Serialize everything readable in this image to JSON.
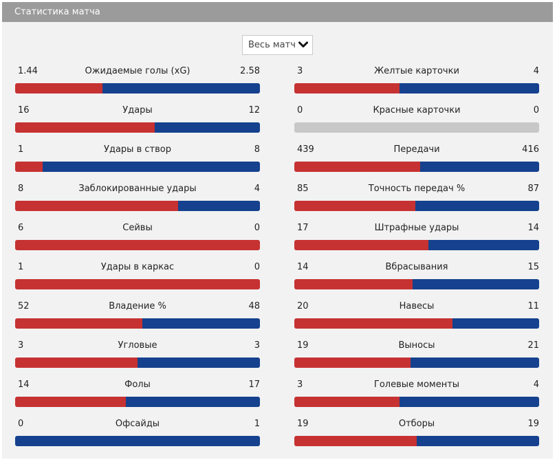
{
  "header": {
    "title": "Статистика матча"
  },
  "selector": {
    "value": "Весь матч"
  },
  "colors": {
    "home": "#c63232",
    "away": "#15418e",
    "empty": "#c8c8c8"
  },
  "left": [
    {
      "label": "Ожидаемые голы (xG)",
      "home": "1.44",
      "away": "2.58",
      "home_share": 0.358
    },
    {
      "label": "Удары",
      "home": "16",
      "away": "12",
      "home_share": 0.571
    },
    {
      "label": "Удары в створ",
      "home": "1",
      "away": "8",
      "home_share": 0.111
    },
    {
      "label": "Заблокированные удары",
      "home": "8",
      "away": "4",
      "home_share": 0.667
    },
    {
      "label": "Сейвы",
      "home": "6",
      "away": "0",
      "home_share": 1.0
    },
    {
      "label": "Удары в каркас",
      "home": "1",
      "away": "0",
      "home_share": 1.0
    },
    {
      "label": "Владение %",
      "home": "52",
      "away": "48",
      "home_share": 0.52
    },
    {
      "label": "Угловые",
      "home": "3",
      "away": "3",
      "home_share": 0.5
    },
    {
      "label": "Фолы",
      "home": "14",
      "away": "17",
      "home_share": 0.452
    },
    {
      "label": "Офсайды",
      "home": "0",
      "away": "1",
      "home_share": 0.0
    }
  ],
  "right": [
    {
      "label": "Желтые карточки",
      "home": "3",
      "away": "4",
      "home_share": 0.429
    },
    {
      "label": "Красные карточки",
      "home": "0",
      "away": "0",
      "home_share": null
    },
    {
      "label": "Передачи",
      "home": "439",
      "away": "416",
      "home_share": 0.513
    },
    {
      "label": "Точность передач %",
      "home": "85",
      "away": "87",
      "home_share": 0.494
    },
    {
      "label": "Штрафные удары",
      "home": "17",
      "away": "14",
      "home_share": 0.548
    },
    {
      "label": "Вбрасывания",
      "home": "14",
      "away": "15",
      "home_share": 0.483
    },
    {
      "label": "Навесы",
      "home": "20",
      "away": "11",
      "home_share": 0.645
    },
    {
      "label": "Выносы",
      "home": "19",
      "away": "21",
      "home_share": 0.475
    },
    {
      "label": "Голевые моменты",
      "home": "3",
      "away": "4",
      "home_share": 0.429
    },
    {
      "label": "Отборы",
      "home": "19",
      "away": "19",
      "home_share": 0.5
    }
  ]
}
